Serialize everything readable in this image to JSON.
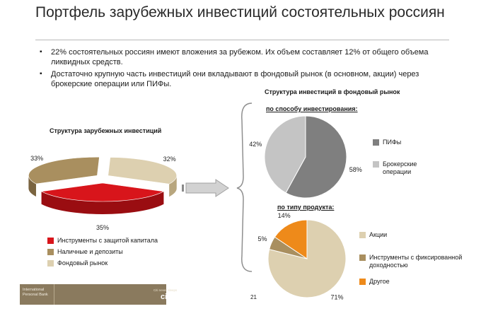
{
  "title": "Портфель зарубежных инвестиций состоятельных россиян",
  "bullets": [
    "22% состоятельных россиян имеют вложения за рубежом. Их объем составляет 12% от общего объема ликвидных средств.",
    "Достаточно крупную часть инвестиций они вкладывают в фондовый рынок (в основном, акции) через брокерские операции или ПИФы."
  ],
  "left_chart_title": "Структура зарубежных инвестиций",
  "right_section_title": "Структура инвестиций в фондовый рынок",
  "sub1_title": "по способу инвестирования:",
  "sub2_title": "по типу продукта:",
  "page_number": "21",
  "footer": {
    "line1": "International",
    "line2": "Personal Bank",
    "tagline": "Citi never sleeps",
    "logo": "citi"
  },
  "colors": {
    "red": "#d8151b",
    "brown": "#a98f5f",
    "beige": "#ddd0b0",
    "dark_gray": "#7f7f7f",
    "light_gray": "#c4c4c4",
    "orange": "#ee8a1a",
    "footer": "#8a7a5e"
  },
  "chart_data": [
    {
      "type": "pie",
      "title": "Структура зарубежных инвестиций",
      "style": "3d exploded",
      "legend_position": "bottom",
      "categories": [
        "Инструменты с защитой капитала",
        "Наличные и депозиты",
        "Фондовый рынок"
      ],
      "values": [
        35,
        33,
        32
      ],
      "data_labels": [
        "35%",
        "33%",
        "32%"
      ]
    },
    {
      "type": "pie",
      "title": "по способу инвестирования:",
      "legend_position": "right",
      "categories": [
        "ПИФы",
        "Брокерские операции"
      ],
      "values": [
        58,
        42
      ],
      "data_labels": [
        "58%",
        "42%"
      ]
    },
    {
      "type": "pie",
      "title": "по типу продукта:",
      "legend_position": "right",
      "categories": [
        "Акции",
        "Инструменты с фиксированной доходностью",
        "Другое"
      ],
      "values": [
        71,
        5,
        14
      ],
      "data_labels": [
        "71%",
        "5%",
        "14%"
      ]
    }
  ]
}
